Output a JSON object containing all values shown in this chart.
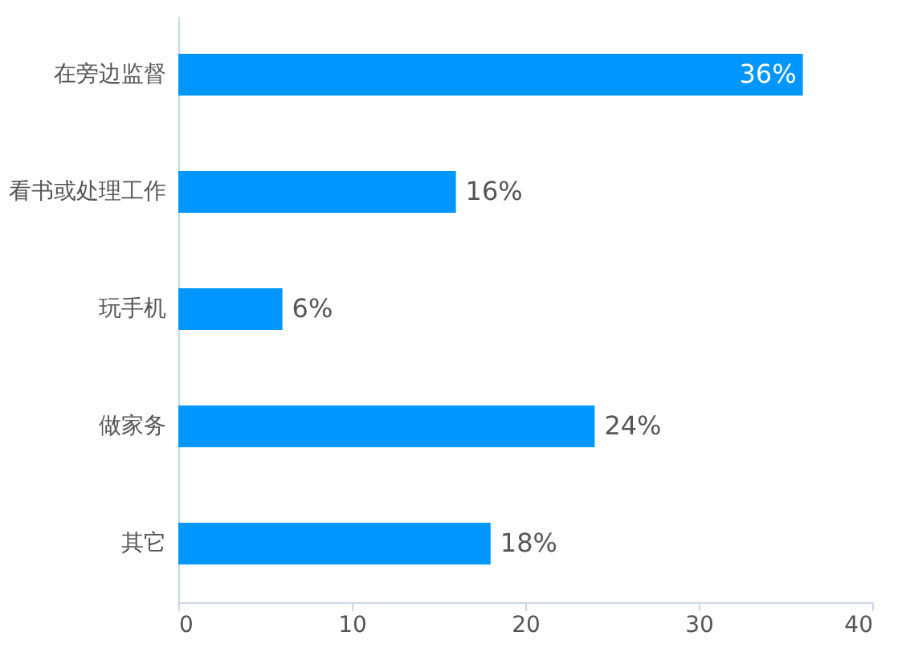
{
  "chart_data": {
    "type": "bar",
    "orientation": "horizontal",
    "categories": [
      "在旁边监督",
      "看书或处理工作",
      "玩手机",
      "做家务",
      "其它"
    ],
    "values": [
      36,
      16,
      6,
      24,
      18
    ],
    "value_labels": [
      "36%",
      "16%",
      "6%",
      "24%",
      "18%"
    ],
    "color": "#0096ff",
    "xlim": [
      0,
      40
    ],
    "xticks": [
      0,
      10,
      20,
      30,
      40
    ],
    "grid": false
  }
}
